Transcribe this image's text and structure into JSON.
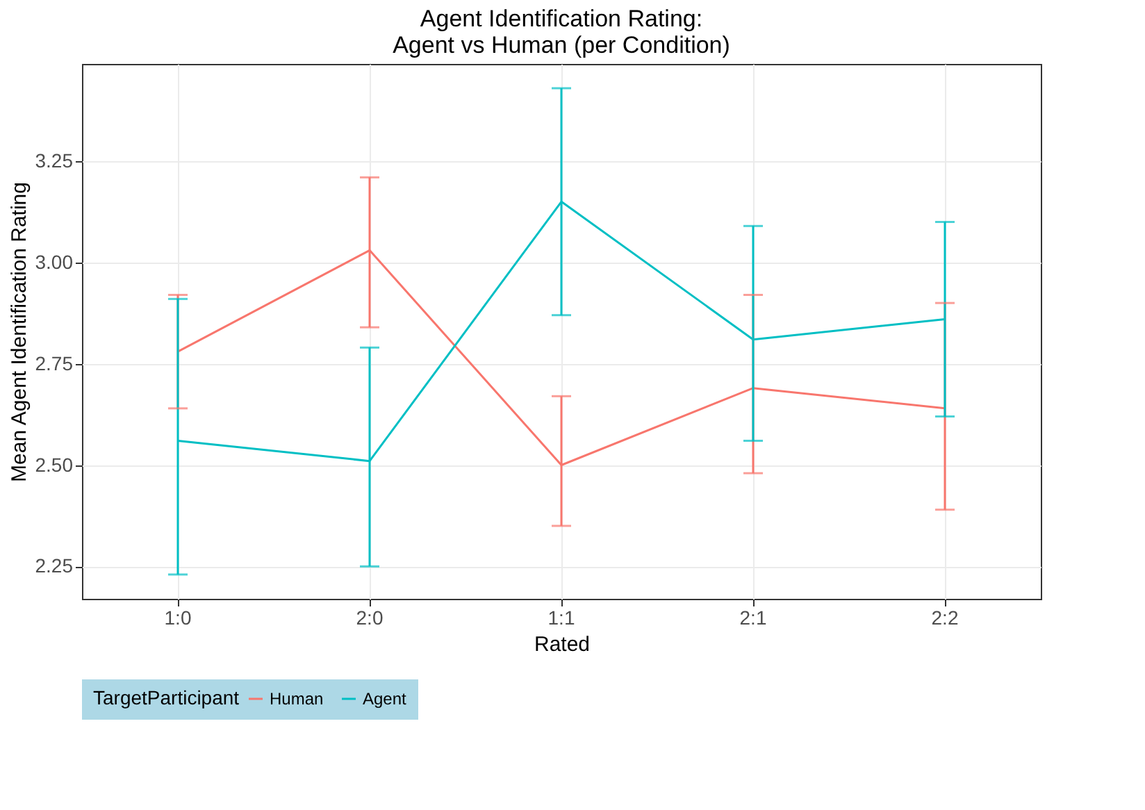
{
  "chart_data": {
    "type": "line",
    "title": "Agent Identification Rating:\nAgent vs Human (per Condition)",
    "xlabel": "Rated",
    "ylabel": "Mean Agent Identification Rating",
    "legend_title": "TargetParticipant",
    "categories": [
      "1:0",
      "2:0",
      "1:1",
      "2:1",
      "2:2"
    ],
    "series": [
      {
        "name": "Human",
        "color": "#f8766d",
        "values": [
          2.78,
          3.03,
          2.5,
          2.69,
          2.64
        ],
        "errors": [
          [
            2.64,
            2.92
          ],
          [
            2.84,
            3.21
          ],
          [
            2.35,
            2.67
          ],
          [
            2.48,
            2.92
          ],
          [
            2.39,
            2.9
          ]
        ]
      },
      {
        "name": "Agent",
        "color": "#00bfc4",
        "values": [
          2.56,
          2.51,
          3.15,
          2.81,
          2.86
        ],
        "errors": [
          [
            2.23,
            2.91
          ],
          [
            2.25,
            2.79
          ],
          [
            2.87,
            3.43
          ],
          [
            2.56,
            3.09
          ],
          [
            2.62,
            3.1
          ]
        ]
      }
    ],
    "ylim": [
      2.17,
      3.49
    ],
    "yticks": [
      {
        "value": 2.25,
        "label": "2.25"
      },
      {
        "value": 2.5,
        "label": "2.50"
      },
      {
        "value": 2.75,
        "label": "2.75"
      },
      {
        "value": 3.0,
        "label": "3.00"
      },
      {
        "value": 3.25,
        "label": "3.25"
      }
    ],
    "grid": true,
    "legend": "bottom",
    "marker": "none",
    "line_style": "solid"
  }
}
